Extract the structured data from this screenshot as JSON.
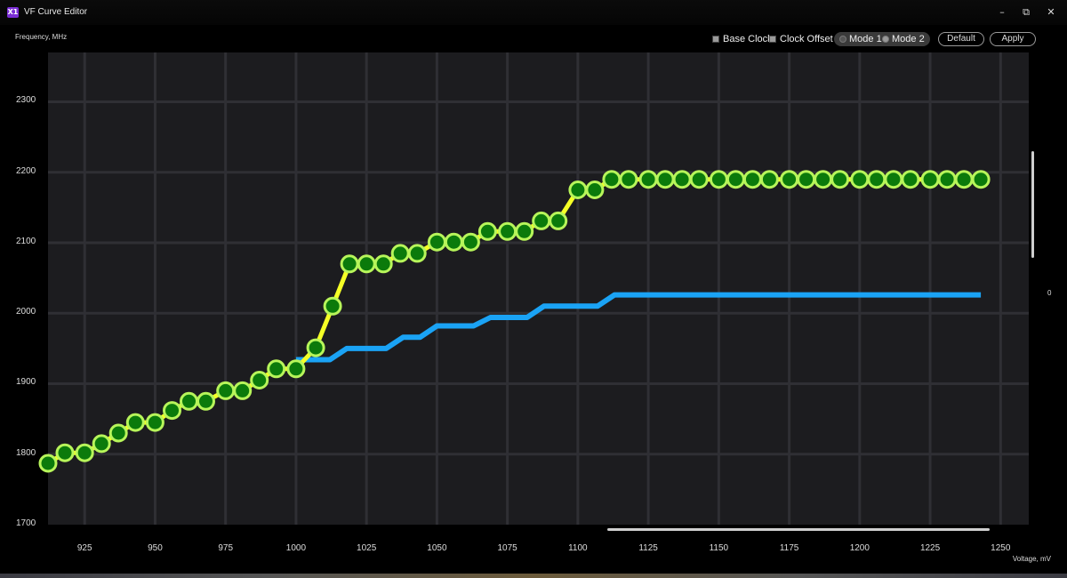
{
  "window": {
    "title": "VF Curve Editor",
    "icon_text": "X1",
    "controls": {
      "minimize": "–",
      "maximize": "⧉",
      "close": "✕"
    }
  },
  "toolbar": {
    "base_clock": "Base Clock",
    "clock_offset": "Clock Offset",
    "mode1": "Mode 1",
    "mode2": "Mode 2",
    "default_btn": "Default",
    "apply_btn": "Apply"
  },
  "side_value": "0",
  "colors": {
    "background": "#000000",
    "plot_bg": "#1c1c1f",
    "grid": "#2f2f34",
    "curve_yellow": "#f5ff26",
    "point_fill": "#0b7a0b",
    "point_stroke": "#b7f55a",
    "base_line": "#1aa3f5"
  },
  "chart_data": {
    "type": "line",
    "xlabel": "Voltage, mV",
    "ylabel": "Frequency, MHz",
    "xlim": [
      912,
      1260
    ],
    "ylim": [
      1700,
      2370
    ],
    "x_ticks": [
      "925",
      "950",
      "975",
      "1000",
      "1025",
      "1050",
      "1075",
      "1100",
      "1125",
      "1150",
      "1175",
      "1200",
      "1225",
      "1250"
    ],
    "y_ticks": [
      "1700",
      "1800",
      "1900",
      "2000",
      "2100",
      "2200",
      "2300"
    ],
    "grid": true,
    "series": [
      {
        "name": "Clock Offset",
        "style": "line-with-markers",
        "points": [
          [
            912,
            1787
          ],
          [
            918,
            1802
          ],
          [
            925,
            1802
          ],
          [
            931,
            1815
          ],
          [
            937,
            1830
          ],
          [
            943,
            1845
          ],
          [
            950,
            1845
          ],
          [
            956,
            1862
          ],
          [
            962,
            1875
          ],
          [
            968,
            1875
          ],
          [
            975,
            1890
          ],
          [
            981,
            1890
          ],
          [
            987,
            1905
          ],
          [
            993,
            1921
          ],
          [
            1000,
            1921
          ],
          [
            1007,
            1951
          ],
          [
            1013,
            2010
          ],
          [
            1019,
            2070
          ],
          [
            1025,
            2070
          ],
          [
            1031,
            2070
          ],
          [
            1037,
            2085
          ],
          [
            1043,
            2085
          ],
          [
            1050,
            2101
          ],
          [
            1056,
            2101
          ],
          [
            1062,
            2101
          ],
          [
            1068,
            2116
          ],
          [
            1075,
            2116
          ],
          [
            1081,
            2116
          ],
          [
            1087,
            2131
          ],
          [
            1093,
            2131
          ],
          [
            1100,
            2175
          ],
          [
            1106,
            2175
          ],
          [
            1112,
            2190
          ],
          [
            1118,
            2190
          ],
          [
            1125,
            2190
          ],
          [
            1131,
            2190
          ],
          [
            1137,
            2190
          ],
          [
            1143,
            2190
          ],
          [
            1150,
            2190
          ],
          [
            1156,
            2190
          ],
          [
            1162,
            2190
          ],
          [
            1168,
            2190
          ],
          [
            1175,
            2190
          ],
          [
            1181,
            2190
          ],
          [
            1187,
            2190
          ],
          [
            1193,
            2190
          ],
          [
            1200,
            2190
          ],
          [
            1206,
            2190
          ],
          [
            1212,
            2190
          ],
          [
            1218,
            2190
          ],
          [
            1225,
            2190
          ],
          [
            1231,
            2190
          ],
          [
            1237,
            2190
          ],
          [
            1243,
            2190
          ]
        ]
      },
      {
        "name": "Base Clock",
        "style": "step",
        "points": [
          [
            1000,
            1934
          ],
          [
            1012,
            1934
          ],
          [
            1018,
            1950
          ],
          [
            1032,
            1950
          ],
          [
            1038,
            1966
          ],
          [
            1044,
            1966
          ],
          [
            1050,
            1982
          ],
          [
            1063,
            1982
          ],
          [
            1069,
            1994
          ],
          [
            1082,
            1994
          ],
          [
            1088,
            2010
          ],
          [
            1107,
            2010
          ],
          [
            1113,
            2026
          ],
          [
            1243,
            2026
          ]
        ]
      }
    ]
  }
}
